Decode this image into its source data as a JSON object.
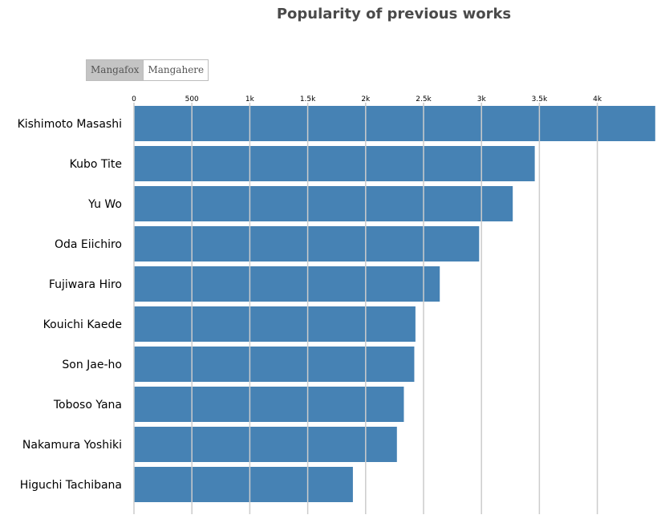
{
  "chart_data": {
    "type": "bar",
    "orientation": "horizontal",
    "title": "Popularity of previous works",
    "xlabel": "",
    "ylabel": "",
    "xlim": [
      0,
      4500
    ],
    "x_ticks": [
      0,
      500,
      1000,
      1500,
      2000,
      2500,
      3000,
      3500,
      4000
    ],
    "x_tick_labels": [
      "0",
      "500",
      "1k",
      "1.5k",
      "2k",
      "2.5k",
      "3k",
      "3.5k",
      "4k"
    ],
    "grid": true,
    "categories": [
      "Kishimoto Masashi",
      "Kubo Tite",
      "Yu Wo",
      "Oda Eiichiro",
      "Fujiwara Hiro",
      "Kouichi Kaede",
      "Son Jae-ho",
      "Toboso Yana",
      "Nakamura Yoshiki",
      "Higuchi Tachibana"
    ],
    "values": [
      4500,
      3460,
      3270,
      2980,
      2640,
      2430,
      2420,
      2330,
      2270,
      1890
    ],
    "bar_color": "#4682b4",
    "grid_color": "#cccccc"
  },
  "toggle": {
    "options": [
      "Mangafox",
      "Mangahere"
    ],
    "selected": "Mangafox"
  }
}
